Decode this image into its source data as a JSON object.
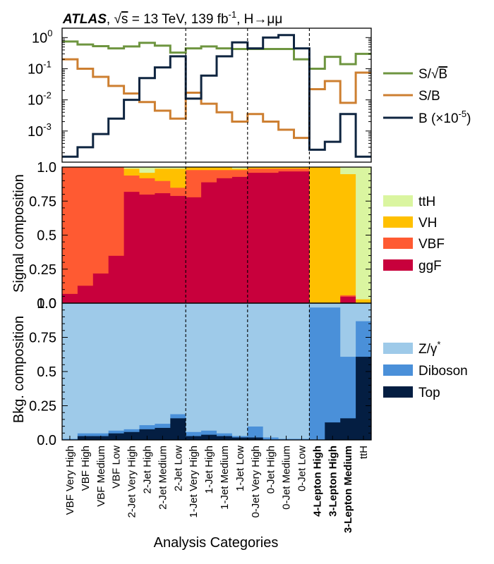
{
  "header": {
    "experiment": "ATLAS",
    "sqrt_s": "s",
    "energy": " = 13 TeV, 139 fb",
    "lumi_exp": "-1",
    "channel": ", H→μμ"
  },
  "chart_data": {
    "type": "step+stacked-bar",
    "xlabel": "Analysis Categories",
    "categories": [
      "VBF Very High",
      "VBF High",
      "VBF Medium",
      "VBF Low",
      "2-Jet Very High",
      "2-Jet High",
      "2-Jet Medium",
      "2-Jet Low",
      "1-Jet Very High",
      "1-Jet High",
      "1-Jet Medium",
      "1-Jet Low",
      "0-Jet Very High",
      "0-Jet High",
      "0-Jet Medium",
      "0-Jet Low",
      "4-Lepton High",
      "3-Lepton High",
      "3-Lepton Medium",
      "ttH"
    ],
    "bold_categories": [
      "4-Lepton High",
      "3-Lepton High",
      "3-Lepton Medium"
    ],
    "separators_after": [
      7,
      11,
      15
    ],
    "top_panel": {
      "yscale": "log",
      "ylim": [
        0.0001,
        2
      ],
      "ytick_values": [
        1,
        0.1,
        0.01,
        0.001
      ],
      "ytick_labels": [
        {
          "base": "10",
          "exp": "0"
        },
        {
          "base": "10",
          "exp": "-1"
        },
        {
          "base": "10",
          "exp": "-2"
        },
        {
          "base": "10",
          "exp": "-3"
        }
      ],
      "series": [
        {
          "name": "S/√B",
          "legend_main": "S/",
          "legend_root": "B",
          "color": "#6e9540",
          "values": [
            0.75,
            0.6,
            0.53,
            0.45,
            0.52,
            0.68,
            0.55,
            0.33,
            0.45,
            0.52,
            0.45,
            0.43,
            0.43,
            0.43,
            0.43,
            0.2,
            0.1,
            0.24,
            0.14,
            0.3
          ]
        },
        {
          "name": "S/B",
          "legend_main": "S/B",
          "color": "#cd7f31",
          "values": [
            0.2,
            0.1,
            0.055,
            0.028,
            0.016,
            0.0085,
            0.0045,
            0.0025,
            0.017,
            0.0075,
            0.004,
            0.002,
            0.0035,
            0.002,
            0.0011,
            0.0006,
            0.022,
            0.04,
            0.008,
            0.075
          ]
        },
        {
          "name": "B (×10-5)",
          "legend_main": "B (×10",
          "legend_exp": "-5",
          "legend_tail": ")",
          "color": "#0f2540",
          "values": [
            0.00015,
            0.0003,
            0.0008,
            0.0025,
            0.01,
            0.05,
            0.11,
            0.25,
            0.011,
            0.06,
            0.25,
            0.7,
            0.45,
            1.0,
            1.2,
            0.45,
            0.00025,
            0.00045,
            0.0035,
            0.00015
          ]
        }
      ]
    },
    "signal_panel": {
      "ylabel": "Signal composition",
      "ylim": [
        0,
        1
      ],
      "ytick_labels": [
        "1.0",
        "0.75",
        "0.5",
        "0.25",
        "0.0"
      ],
      "components": [
        {
          "name": "ggF",
          "color": "#c8003c",
          "values": [
            0.07,
            0.13,
            0.22,
            0.35,
            0.82,
            0.8,
            0.81,
            0.79,
            0.78,
            0.89,
            0.92,
            0.93,
            0.96,
            0.96,
            0.97,
            0.97,
            0.0,
            0.0,
            0.05,
            0.0
          ]
        },
        {
          "name": "VBF",
          "color": "#ff5a32",
          "values": [
            0.93,
            0.87,
            0.78,
            0.65,
            0.12,
            0.12,
            0.09,
            0.06,
            0.2,
            0.09,
            0.06,
            0.05,
            0.03,
            0.03,
            0.02,
            0.02,
            0.0,
            0.0,
            0.01,
            0.0
          ]
        },
        {
          "name": "VH",
          "color": "#ffc000",
          "values": [
            0.0,
            0.0,
            0.0,
            0.0,
            0.05,
            0.04,
            0.09,
            0.14,
            0.02,
            0.02,
            0.02,
            0.01,
            0.01,
            0.01,
            0.01,
            0.01,
            1.0,
            1.0,
            0.89,
            0.03
          ]
        },
        {
          "name": "ttH",
          "color": "#daf5a0",
          "values": [
            0.0,
            0.0,
            0.0,
            0.0,
            0.01,
            0.04,
            0.01,
            0.01,
            0.0,
            0.0,
            0.0,
            0.01,
            0.0,
            0.0,
            0.0,
            0.0,
            0.0,
            0.0,
            0.05,
            0.97
          ]
        }
      ]
    },
    "background_panel": {
      "ylabel": "Bkg. composition",
      "ylim": [
        0,
        1
      ],
      "ytick_labels": [
        "1.0",
        "0.75",
        "0.5",
        "0.25",
        "0.0"
      ],
      "components": [
        {
          "name": "Top",
          "color": "#041e42",
          "values": [
            0.0,
            0.03,
            0.03,
            0.05,
            0.06,
            0.08,
            0.09,
            0.16,
            0.03,
            0.04,
            0.03,
            0.02,
            0.02,
            0.0,
            0.0,
            0.0,
            0.0,
            0.13,
            0.16,
            0.61
          ]
        },
        {
          "name": "Diboson",
          "color": "#4a90d9",
          "values": [
            0.01,
            0.02,
            0.02,
            0.02,
            0.02,
            0.03,
            0.03,
            0.03,
            0.03,
            0.03,
            0.02,
            0.01,
            0.08,
            0.02,
            0.01,
            0.01,
            0.97,
            0.84,
            0.45,
            0.26
          ]
        },
        {
          "name": "Z/γ*",
          "legend_main": "Z/γ",
          "legend_exp": "*",
          "color": "#9ecae9",
          "values": [
            0.99,
            0.95,
            0.95,
            0.93,
            0.92,
            0.89,
            0.88,
            0.81,
            0.94,
            0.93,
            0.95,
            0.97,
            0.9,
            0.98,
            0.99,
            0.99,
            0.03,
            0.03,
            0.39,
            0.13
          ]
        }
      ]
    }
  }
}
